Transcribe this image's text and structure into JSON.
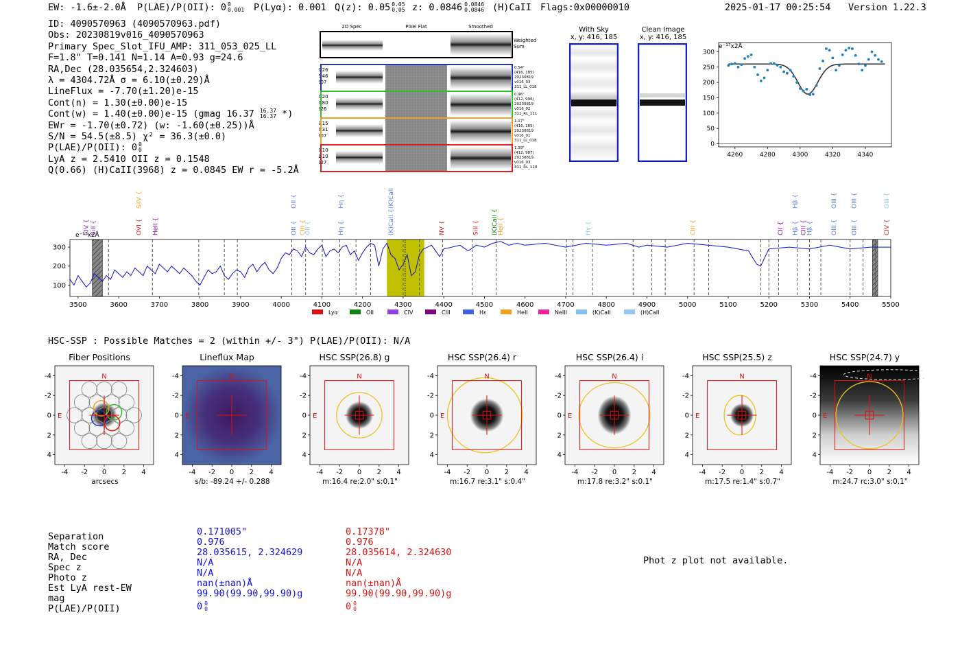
{
  "header": {
    "ew": "EW: -1.6±-2.0Å",
    "plae_label": "P(LAE)/P(OII): 0",
    "plae_sup": "0",
    "plae_sub": "0.001",
    "plya": "P(Lyα): 0.001",
    "qz_label": "Q(z): 0.05",
    "qz_sup": "0.05",
    "qz_sub": "0.05",
    "z_label": "z: 0.0846",
    "z_sup": "0.0846",
    "z_sub": "0.0846",
    "line": "(H)CaII",
    "flags": "Flags:0x00000010",
    "timestamp": "2025-01-17 00:25:54",
    "version": "Version 1.22.3"
  },
  "info": {
    "id": "ID: 4090570963 (4090570963.pdf)",
    "obs": "Obs: 20230819v016_4090570963",
    "primary": "Primary Spec_Slot_IFU_AMP: 311_053_025_LL",
    "fwhm": "F=1.8\"  T=0.141  N=1.14  A=0.93  g=24.6",
    "radec": "RA,Dec (28.035654,2.324603)",
    "lambda": "λ = 4304.72Å  σ = 6.10(±0.29)Å",
    "lineflux": "LineFlux = -7.70(±1.20)e-15",
    "contn": "Cont(n) = 1.30(±0.00)e-15",
    "contw": "Cont(w) = 1.40(±0.00)e-15 (gmag 16.37",
    "contw_sup": "16.37",
    "contw_sub": "16.37",
    "contw_end": "*)",
    "ewr": "EWr = -1.70(±0.72) (w: -1.60(±0.25))Å",
    "sn": "S/N = 54.5(±8.5)  χ² = 36.3(±0.0)",
    "plae": "P(LAE)/P(OII): 0",
    "plae_sup": "0",
    "plae_sub": "0",
    "lya": "LyA z = 2.5410  OII z = 0.1548",
    "q": "Q(0.66) (H)CaII(3968) z = 0.0845  EW r = -5.2Å"
  },
  "spec2d": {
    "col_titles": [
      "2D Spec",
      "Pixel Flat",
      "Smoothed"
    ],
    "weighted_label": "Weighted\nSum",
    "rows": [
      {
        "left": [
          "0.26",
          "2.46",
          "207"
        ],
        "right": [
          "0.54\"",
          "(416, 185)",
          "20230819",
          "v016_03",
          "311_LL_018"
        ],
        "color": "#2030c8"
      },
      {
        "left": [
          "0.20",
          "0.80",
          "226"
        ],
        "right": [
          "0.96\"",
          "(412, 996)",
          "20230819",
          "v016_02",
          "311_RL_111"
        ],
        "color": "#30c030"
      },
      {
        "left": [
          "0.15",
          "2.31",
          "207"
        ],
        "right": [
          "1.17\"",
          "(416, 185)",
          "20230819",
          "v016_01",
          "311_LL_018"
        ],
        "color": "#f0a020"
      },
      {
        "left": [
          "0.10",
          "1.10",
          "227"
        ],
        "right": [
          "1.39\"",
          "(412, 987)",
          "20230819",
          "v016_03",
          "311_RL_110"
        ],
        "color": "#e02020"
      }
    ]
  },
  "sky": {
    "with_sky_title": "With Sky",
    "with_sky_xy": "x, y: 416, 185",
    "clean_title": "Clean Image",
    "clean_xy": "x, y: 416, 185"
  },
  "fit_plot": {
    "ylabel": "e⁻¹⁷x2Å",
    "xticks": [
      4260,
      4280,
      4300,
      4320,
      4340
    ],
    "yticks": [
      0,
      50,
      100,
      150,
      200,
      250,
      300
    ]
  },
  "chart_data": {
    "type": "line",
    "title": "",
    "ylabel": "e⁻¹⁷x2Å",
    "xlabel": "",
    "xlim": [
      3480,
      5500
    ],
    "ylim": [
      40,
      340
    ],
    "xticks": [
      3500,
      3600,
      3700,
      3800,
      3900,
      4000,
      4100,
      4200,
      4300,
      4400,
      4500,
      4600,
      4700,
      4800,
      4900,
      5000,
      5100,
      5200,
      5300,
      5400,
      5500
    ],
    "yticks": [
      100,
      200,
      300
    ],
    "series": [
      {
        "name": "spectrum",
        "color": "#1010d0",
        "x": [
          3480,
          3490,
          3500,
          3510,
          3520,
          3530,
          3540,
          3550,
          3560,
          3570,
          3580,
          3590,
          3600,
          3610,
          3620,
          3630,
          3640,
          3650,
          3660,
          3670,
          3680,
          3690,
          3700,
          3710,
          3720,
          3730,
          3740,
          3750,
          3760,
          3770,
          3780,
          3790,
          3800,
          3810,
          3820,
          3830,
          3840,
          3850,
          3860,
          3870,
          3880,
          3890,
          3900,
          3910,
          3920,
          3930,
          3940,
          3950,
          3960,
          3970,
          3980,
          3990,
          4000,
          4010,
          4020,
          4030,
          4040,
          4050,
          4060,
          4070,
          4080,
          4090,
          4100,
          4110,
          4120,
          4130,
          4140,
          4150,
          4160,
          4170,
          4180,
          4190,
          4200,
          4210,
          4220,
          4230,
          4240,
          4250,
          4260,
          4270,
          4280,
          4290,
          4300,
          4310,
          4320,
          4330,
          4340,
          4350,
          4360,
          4370,
          4380,
          4390,
          4400,
          4420,
          4440,
          4460,
          4480,
          4500,
          4520,
          4540,
          4560,
          4580,
          4600,
          4650,
          4700,
          4750,
          4800,
          4850,
          4880,
          4900,
          4950,
          5000,
          5050,
          5100,
          5150,
          5170,
          5180,
          5200,
          5250,
          5300,
          5350,
          5400,
          5450,
          5500
        ],
        "y": [
          130,
          100,
          150,
          120,
          90,
          110,
          160,
          140,
          120,
          150,
          130,
          180,
          160,
          140,
          170,
          150,
          190,
          170,
          150,
          200,
          180,
          160,
          210,
          190,
          170,
          200,
          180,
          160,
          190,
          170,
          150,
          120,
          100,
          140,
          180,
          160,
          170,
          200,
          150,
          130,
          160,
          180,
          170,
          140,
          190,
          210,
          170,
          200,
          220,
          180,
          160,
          190,
          240,
          270,
          260,
          290,
          280,
          250,
          300,
          270,
          260,
          290,
          310,
          250,
          280,
          290,
          270,
          300,
          310,
          260,
          280,
          230,
          270,
          300,
          320,
          310,
          200,
          290,
          320,
          260,
          240,
          180,
          210,
          260,
          150,
          170,
          260,
          290,
          300,
          310,
          280,
          250,
          290,
          300,
          310,
          280,
          310,
          300,
          320,
          330,
          310,
          320,
          310,
          320,
          300,
          320,
          310,
          320,
          300,
          310,
          300,
          320,
          310,
          300,
          280,
          210,
          200,
          290,
          300,
          290,
          310,
          290,
          300,
          300
        ]
      }
    ],
    "shaded": [
      {
        "x0": 4260,
        "x1": 4352,
        "color": "#c0c000"
      }
    ],
    "hatched": [
      {
        "x0": 3535,
        "x1": 3560
      },
      {
        "x0": 5455,
        "x1": 5468
      }
    ],
    "dashed_lines": [
      3575,
      3683,
      3797,
      3860,
      3892,
      4026,
      4060,
      4101,
      4144,
      4184,
      4220,
      4300,
      4340,
      4397,
      4470,
      4529,
      4702,
      4718,
      4766,
      4866,
      4912,
      4945,
      5016,
      5052,
      5180,
      5200,
      5224,
      5270,
      5300,
      5328,
      5400,
      5432,
      5462
    ],
    "dotted_lines": [
      4305
    ],
    "line_labels": [
      {
        "x": 3520,
        "text": "CIV",
        "color": "#8030b0",
        "row": 1
      },
      {
        "x": 3537,
        "text": "SiII",
        "color": "#8030b0",
        "row": 1
      },
      {
        "x": 3650,
        "text": "SiIV",
        "color": "#f0a020",
        "row": 0
      },
      {
        "x": 3650,
        "text": "OVI",
        "color": "#e02020",
        "row": 1
      },
      {
        "x": 3690,
        "text": "HeII",
        "color": "#9010a0",
        "row": 1
      },
      {
        "x": 4030,
        "text": "OII",
        "color": "#6080e0",
        "row": 0
      },
      {
        "x": 4030,
        "text": "OII",
        "color": "#6080e0",
        "row": 1
      },
      {
        "x": 4052,
        "text": "CIII",
        "color": "#f0a020",
        "row": 1
      },
      {
        "x": 4065,
        "text": "OII",
        "color": "#90c8f0",
        "row": 1
      },
      {
        "x": 4147,
        "text": "Hη",
        "color": "#6080e0",
        "row": 0
      },
      {
        "x": 4147,
        "text": "Hη",
        "color": "#6080e0",
        "row": 1
      },
      {
        "x": 4270,
        "text": "(K)CaII",
        "color": "#6080e0",
        "row": 0
      },
      {
        "x": 4270,
        "text": "(K)CaII",
        "color": "#6080e0",
        "row": 1
      },
      {
        "x": 4395,
        "text": "NV",
        "color": "#e02020",
        "row": 1
      },
      {
        "x": 4478,
        "text": "SiII",
        "color": "#e02020",
        "row": 1
      },
      {
        "x": 4525,
        "text": "(K)CaII",
        "color": "#108010",
        "row": 1
      },
      {
        "x": 4540,
        "text": "HeII",
        "color": "#f0a020",
        "row": 1
      },
      {
        "x": 4755,
        "text": "Hγ",
        "color": "#90c8f0",
        "row": 1
      },
      {
        "x": 5013,
        "text": "CIII",
        "color": "#f0a020",
        "row": 1
      },
      {
        "x": 5228,
        "text": "CII",
        "color": "#9010a0",
        "row": 1
      },
      {
        "x": 5265,
        "text": "Hβ",
        "color": "#6080e0",
        "row": 0
      },
      {
        "x": 5265,
        "text": "Hβ",
        "color": "#6080e0",
        "row": 1
      },
      {
        "x": 5285,
        "text": "CIII",
        "color": "#9010a0",
        "row": 1
      },
      {
        "x": 5300,
        "text": "Hβ",
        "color": "#6080e0",
        "row": 1
      },
      {
        "x": 5360,
        "text": "OIII",
        "color": "#6080e0",
        "row": 0
      },
      {
        "x": 5360,
        "text": "OIII",
        "color": "#6080e0",
        "row": 1
      },
      {
        "x": 5410,
        "text": "OIII",
        "color": "#6080e0",
        "row": 0
      },
      {
        "x": 5410,
        "text": "OIII",
        "color": "#6080e0",
        "row": 1
      },
      {
        "x": 5490,
        "text": "OIII",
        "color": "#90c8f0",
        "row": 0
      },
      {
        "x": 5490,
        "text": "CIV",
        "color": "#e02020",
        "row": 1
      }
    ],
    "legend": [
      {
        "name": "Lyα",
        "color": "#e01010"
      },
      {
        "name": "OII",
        "color": "#108010"
      },
      {
        "name": "CIV",
        "color": "#9040e0"
      },
      {
        "name": "CIII",
        "color": "#800080"
      },
      {
        "name": "Hε",
        "color": "#4060e0"
      },
      {
        "name": "HeII",
        "color": "#f0a020"
      },
      {
        "name": "NeIII",
        "color": "#f020a0"
      },
      {
        "name": "(K)CaII",
        "color": "#80c0f0"
      },
      {
        "name": "(H)CaII",
        "color": "#90c8f0"
      }
    ],
    "fit_points": [
      {
        "x": 4256,
        "y": 255
      },
      {
        "x": 4258,
        "y": 260
      },
      {
        "x": 4260,
        "y": 262
      },
      {
        "x": 4262,
        "y": 250
      },
      {
        "x": 4264,
        "y": 258
      },
      {
        "x": 4266,
        "y": 278
      },
      {
        "x": 4268,
        "y": 285
      },
      {
        "x": 4270,
        "y": 290
      },
      {
        "x": 4272,
        "y": 250
      },
      {
        "x": 4274,
        "y": 225
      },
      {
        "x": 4276,
        "y": 205
      },
      {
        "x": 4278,
        "y": 215
      },
      {
        "x": 4280,
        "y": 240
      },
      {
        "x": 4282,
        "y": 262
      },
      {
        "x": 4284,
        "y": 262
      },
      {
        "x": 4286,
        "y": 256
      },
      {
        "x": 4288,
        "y": 250
      },
      {
        "x": 4290,
        "y": 235
      },
      {
        "x": 4292,
        "y": 230
      },
      {
        "x": 4294,
        "y": 240
      },
      {
        "x": 4296,
        "y": 220
      },
      {
        "x": 4298,
        "y": 200
      },
      {
        "x": 4300,
        "y": 180
      },
      {
        "x": 4302,
        "y": 172
      },
      {
        "x": 4304,
        "y": 178
      },
      {
        "x": 4306,
        "y": 160
      },
      {
        "x": 4308,
        "y": 162
      },
      {
        "x": 4310,
        "y": 190
      },
      {
        "x": 4312,
        "y": 245
      },
      {
        "x": 4314,
        "y": 270
      },
      {
        "x": 4316,
        "y": 310
      },
      {
        "x": 4318,
        "y": 305
      },
      {
        "x": 4320,
        "y": 280
      },
      {
        "x": 4322,
        "y": 240
      },
      {
        "x": 4324,
        "y": 255
      },
      {
        "x": 4326,
        "y": 290
      },
      {
        "x": 4328,
        "y": 305
      },
      {
        "x": 4330,
        "y": 312
      },
      {
        "x": 4332,
        "y": 310
      },
      {
        "x": 4334,
        "y": 288
      },
      {
        "x": 4336,
        "y": 260
      },
      {
        "x": 4338,
        "y": 240
      },
      {
        "x": 4340,
        "y": 255
      },
      {
        "x": 4342,
        "y": 275
      },
      {
        "x": 4344,
        "y": 300
      },
      {
        "x": 4346,
        "y": 288
      },
      {
        "x": 4348,
        "y": 275
      },
      {
        "x": 4350,
        "y": 268
      }
    ],
    "fit_model": {
      "continuum": 260,
      "center": 4304.72,
      "sigma": 6.1,
      "depth": 98
    }
  },
  "hsc": {
    "title": "HSC-SSP : Possible Matches = 2 (within +/- 3\")  P(LAE)/P(OII): N/A",
    "cutouts": [
      {
        "title": "Fiber Positions",
        "caption": "arcsecs",
        "kind": "fiber"
      },
      {
        "title": "Lineflux Map",
        "caption": "s/b: -89.24 +/- 0.288",
        "kind": "lineflux"
      },
      {
        "title": "HSC SSP(26.8) g",
        "caption": "m:16.4  re:2.0\"  s:0.1\"",
        "kind": "g"
      },
      {
        "title": "HSC SSP(26.4) r",
        "caption": "m:16.7  re:3.1\"  s:0.4\"",
        "kind": "r"
      },
      {
        "title": "HSC SSP(26.4) i",
        "caption": "m:17.8  re:3.2\"  s:0.1\"",
        "kind": "i"
      },
      {
        "title": "HSC SSP(25.5) z",
        "caption": "m:17.5  re:1.4\"  s:0.7\"",
        "kind": "z"
      },
      {
        "title": "HSC SSP(24.7) y",
        "caption": "m:24.7  rc:3.0\"  s:0.1\"",
        "kind": "y"
      }
    ],
    "north_label": "N",
    "east_label": "E",
    "ticks": [
      "-4",
      "-2",
      "0",
      "2",
      "4"
    ]
  },
  "matches": {
    "labels": [
      "Separation",
      "Match score",
      "RA, Dec",
      "Spec z",
      "Photo z",
      "Est LyA rest-EW",
      "mag",
      "P(LAE)/P(OII)"
    ],
    "blue": [
      "0.171005\"",
      "0.976",
      "28.035615, 2.324629",
      "N/A",
      "N/A",
      "nan(±nan)Å",
      "99.90(99.90,99.90)g",
      "0"
    ],
    "red": [
      "0.17378\"",
      "0.976",
      "28.035614, 2.324630",
      "N/A",
      "N/A",
      "nan(±nan)Å",
      "99.90(99.90,99.90)g",
      "0"
    ],
    "blue_plae_sup": "0",
    "blue_plae_sub": "0",
    "red_plae_sup": "0",
    "red_plae_sub": "0",
    "blue_color": "#1010e0",
    "red_color": "#e01010",
    "photz_note": "Phot z plot not available."
  }
}
